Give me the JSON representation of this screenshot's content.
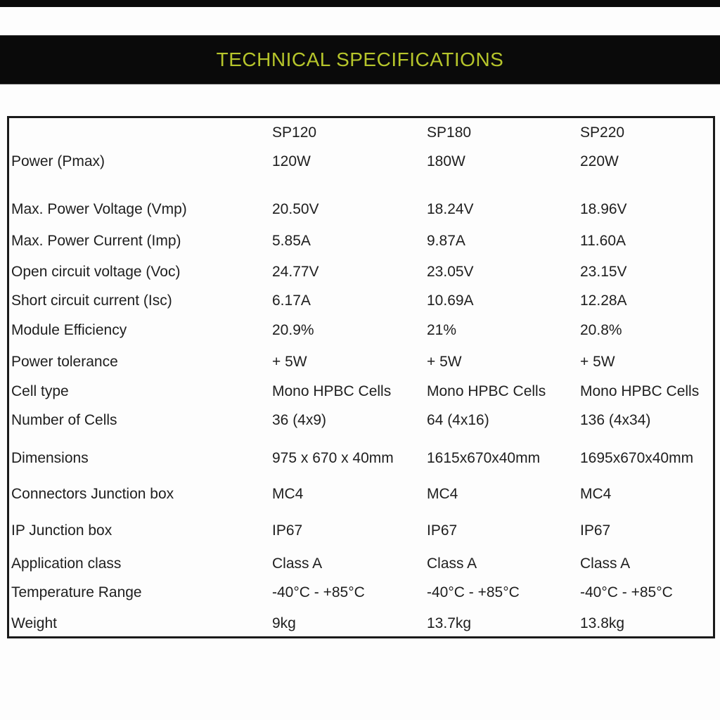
{
  "colors": {
    "accent": "#b6c52b",
    "band_background": "#0a0a0a",
    "table_border": "#1a1a1a",
    "text": "#1e1e1e",
    "page_background": "#fdfdfd"
  },
  "header": {
    "title": "TECHNICAL SPECIFICATIONS"
  },
  "table": {
    "rows": [
      {
        "label": "",
        "values": [
          "SP120",
          "SP180",
          "SP220"
        ]
      },
      {
        "label": "Power (Pmax)",
        "values": [
          "120W",
          "180W",
          "220W"
        ]
      },
      {
        "label": "Max. Power Voltage (Vmp)",
        "values": [
          "20.50V",
          "18.24V",
          "18.96V"
        ]
      },
      {
        "label": "Max. Power Current (Imp)",
        "values": [
          "5.85A",
          "9.87A",
          "11.60A"
        ]
      },
      {
        "label": "Open circuit voltage (Voc)",
        "values": [
          "24.77V",
          "23.05V",
          "23.15V"
        ]
      },
      {
        "label": "Short circuit current (Isc)",
        "values": [
          "6.17A",
          "10.69A",
          "12.28A"
        ]
      },
      {
        "label": "Module Efficiency",
        "values": [
          "20.9%",
          "21%",
          "20.8%"
        ]
      },
      {
        "label": "Power tolerance",
        "values": [
          "+ 5W",
          "+ 5W",
          "+ 5W"
        ]
      },
      {
        "label": "Cell type",
        "values": [
          "Mono HPBC Cells",
          "Mono HPBC Cells",
          "Mono HPBC Cells"
        ]
      },
      {
        "label": "Number of Cells",
        "values": [
          "36 (4x9)",
          "64 (4x16)",
          "136 (4x34)"
        ]
      },
      {
        "label": "Dimensions",
        "values": [
          "975 x 670 x 40mm",
          "1615x670x40mm",
          "1695x670x40mm"
        ]
      },
      {
        "label": "Connectors Junction box",
        "values": [
          "MC4",
          "MC4",
          "MC4"
        ]
      },
      {
        "label": "IP Junction box",
        "values": [
          "IP67",
          "IP67",
          "IP67"
        ]
      },
      {
        "label": "Application class",
        "values": [
          "Class A",
          "Class A",
          "Class A"
        ]
      },
      {
        "label": "Temperature Range",
        "values": [
          "-40°C - +85°C",
          "-40°C - +85°C",
          "-40°C - +85°C"
        ]
      },
      {
        "label": "Weight",
        "values": [
          "9kg",
          "13.7kg",
          "13.8kg"
        ]
      }
    ]
  }
}
